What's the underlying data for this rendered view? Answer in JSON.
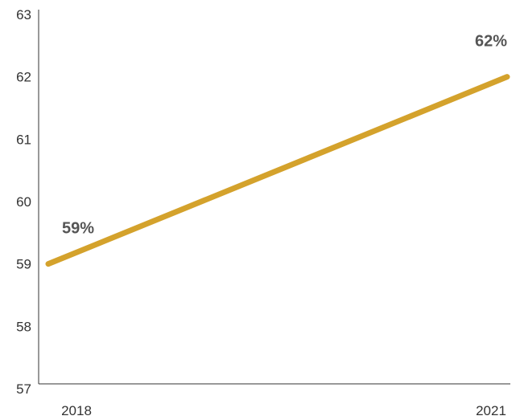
{
  "chart_data": {
    "type": "line",
    "title": "",
    "xlabel": "",
    "ylabel": "",
    "x": [
      "2018",
      "2021"
    ],
    "series": [
      {
        "values": [
          59,
          62
        ],
        "data_labels": [
          "59%",
          "62%"
        ],
        "color": "#D4A22C"
      }
    ],
    "ylim": [
      57,
      63
    ],
    "yticks": [
      "57",
      "58",
      "59",
      "60",
      "61",
      "62",
      "63"
    ],
    "grid": false,
    "legend": "none"
  }
}
